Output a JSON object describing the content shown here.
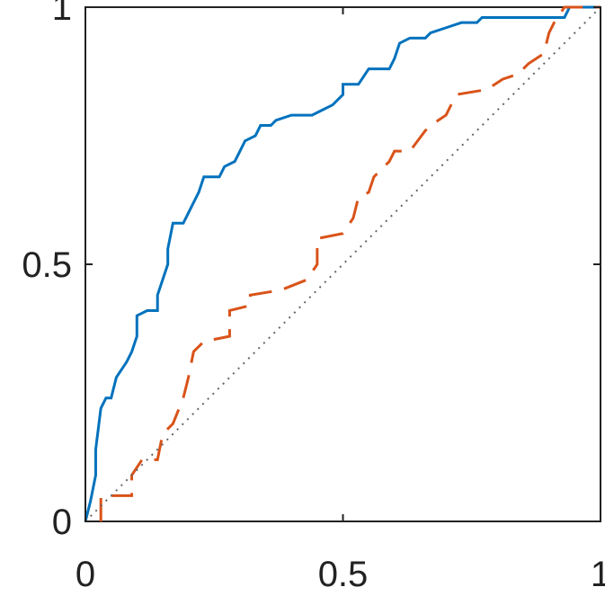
{
  "chart_data": {
    "type": "line",
    "xlim": [
      0,
      1
    ],
    "ylim": [
      0,
      1
    ],
    "xticks": [
      0,
      0.5,
      1
    ],
    "yticks": [
      0,
      0.5,
      1
    ],
    "series": [
      {
        "color": "#0072bd",
        "style": "solid",
        "x": [
          0,
          0.01,
          0.02,
          0.02,
          0.03,
          0.04,
          0.05,
          0.06,
          0.08,
          0.09,
          0.1,
          0.1,
          0.12,
          0.14,
          0.14,
          0.15,
          0.16,
          0.16,
          0.17,
          0.19,
          0.2,
          0.21,
          0.22,
          0.23,
          0.26,
          0.27,
          0.29,
          0.3,
          0.31,
          0.33,
          0.34,
          0.36,
          0.37,
          0.4,
          0.44,
          0.46,
          0.48,
          0.5,
          0.5,
          0.53,
          0.55,
          0.59,
          0.6,
          0.61,
          0.63,
          0.66,
          0.67,
          0.7,
          0.73,
          0.76,
          0.77,
          0.93,
          0.94,
          1
        ],
        "values": [
          0,
          0.04,
          0.09,
          0.14,
          0.22,
          0.24,
          0.24,
          0.28,
          0.31,
          0.33,
          0.36,
          0.4,
          0.41,
          0.41,
          0.44,
          0.47,
          0.5,
          0.53,
          0.58,
          0.58,
          0.6,
          0.62,
          0.64,
          0.67,
          0.67,
          0.69,
          0.7,
          0.72,
          0.74,
          0.75,
          0.77,
          0.77,
          0.78,
          0.79,
          0.79,
          0.8,
          0.81,
          0.83,
          0.85,
          0.85,
          0.88,
          0.88,
          0.9,
          0.93,
          0.94,
          0.94,
          0.95,
          0.96,
          0.97,
          0.97,
          0.98,
          0.98,
          1,
          1
        ]
      },
      {
        "color": "#d95319",
        "style": "dashed",
        "x": [
          0.03,
          0.03,
          0.09,
          0.09,
          0.11,
          0.14,
          0.15,
          0.17,
          0.19,
          0.2,
          0.21,
          0.23,
          0.28,
          0.28,
          0.32,
          0.32,
          0.38,
          0.43,
          0.45,
          0.45,
          0.5,
          0.52,
          0.53,
          0.55,
          0.56,
          0.59,
          0.6,
          0.63,
          0.66,
          0.67,
          0.7,
          0.72,
          0.78,
          0.81,
          0.84,
          0.86,
          0.89,
          0.9,
          0.91,
          0.93,
          1
        ],
        "values": [
          0,
          0.05,
          0.05,
          0.09,
          0.12,
          0.12,
          0.17,
          0.19,
          0.24,
          0.28,
          0.33,
          0.35,
          0.36,
          0.41,
          0.42,
          0.44,
          0.45,
          0.47,
          0.5,
          0.55,
          0.56,
          0.59,
          0.63,
          0.64,
          0.67,
          0.7,
          0.72,
          0.72,
          0.76,
          0.77,
          0.79,
          0.83,
          0.84,
          0.86,
          0.87,
          0.89,
          0.91,
          0.95,
          0.97,
          1,
          1
        ]
      },
      {
        "color": "#666666",
        "style": "dotted",
        "x": [
          0,
          1
        ],
        "values": [
          0,
          1
        ]
      }
    ]
  }
}
